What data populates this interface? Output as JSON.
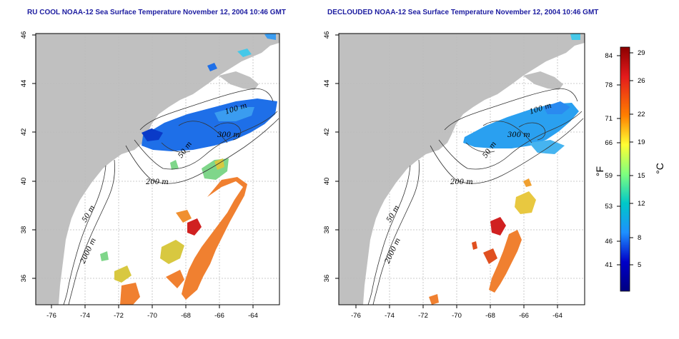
{
  "panels": [
    {
      "title": "RU COOL NOAA-12 Sea Surface Temperature November 12, 2004 10:46 GMT",
      "contour_labels": [
        "100 m",
        "300 m",
        "50 m",
        "200 m",
        "50 m",
        "2000 m"
      ]
    },
    {
      "title": "DECLOUDED NOAA-12 Sea Surface Temperature November 12, 2004 10:46 GMT",
      "contour_labels": [
        "100 m",
        "300 m",
        "50 m",
        "200 m",
        "50 m",
        "2000 m"
      ]
    }
  ],
  "axes": {
    "x_ticks": [
      "-76",
      "-74",
      "-72",
      "-70",
      "-68",
      "-66",
      "-64"
    ],
    "y_ticks": [
      "36",
      "38",
      "40",
      "42",
      "44",
      "46"
    ]
  },
  "colorbar": {
    "fahrenheit_label": "°F",
    "celsius_label": "°C",
    "fahrenheit_ticks": [
      "84",
      "78",
      "71",
      "66",
      "59",
      "53",
      "46",
      "41"
    ],
    "celsius_ticks": [
      "29",
      "26",
      "22",
      "19",
      "15",
      "12",
      "8",
      "5"
    ],
    "colors": [
      "#8b0000",
      "#e41a1c",
      "#ff7f00",
      "#ffff33",
      "#7fff7f",
      "#00c8c8",
      "#1e90ff",
      "#0000c8",
      "#000080"
    ]
  },
  "colors": {
    "land": "#c0c0c0",
    "grid": "#bbbbbb"
  }
}
